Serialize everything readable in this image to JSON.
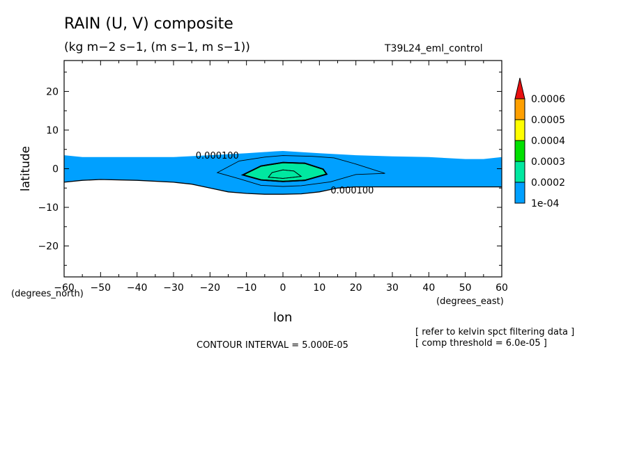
{
  "title": "RAIN (U, V) composite",
  "units": "(kg m−2 s−1, (m s−1, m s−1))",
  "run_name": "T39L24_eml_control",
  "contour_interval": "CONTOUR INTERVAL = 5.000E-05",
  "notes": [
    "[ refer to kelvin spct filtering data ]",
    "[ comp threshold = 6.0e-05 ]"
  ],
  "colors": {
    "c1": "#00a0ff",
    "c2": "#00e8a0",
    "c3": "#00e000",
    "c4": "#ffff00",
    "c5": "#ffa000",
    "c6": "#e81010"
  },
  "chart_data": {
    "type": "heatmap",
    "variable": "RAIN",
    "xlabel": "lon",
    "ylabel": "latitude",
    "x_units": "(degrees_east)",
    "y_units": "(degrees_north)",
    "xlim": [
      -60,
      60
    ],
    "ylim": [
      -28,
      28
    ],
    "x_ticks": [
      -60,
      -50,
      -40,
      -30,
      -20,
      -10,
      0,
      10,
      20,
      30,
      40,
      50,
      60
    ],
    "y_ticks": [
      -20,
      -10,
      0,
      10,
      20
    ],
    "colorbar": {
      "labels": [
        "1e-04",
        "0.0002",
        "0.0003",
        "0.0004",
        "0.0005",
        "0.0006"
      ],
      "levels": [
        0.0001,
        0.0002,
        0.0003,
        0.0004,
        0.0005,
        0.0006
      ],
      "extend": "max"
    },
    "contour_labels": [
      {
        "text": "0.000100",
        "lon": -18,
        "lat": 3.5
      },
      {
        "text": "0.000100",
        "lon": 19,
        "lat": -5.5
      }
    ],
    "regions": [
      {
        "level": 0.0001,
        "north": [
          [
            -60,
            3.5
          ],
          [
            -55,
            3
          ],
          [
            -50,
            3
          ],
          [
            -40,
            3
          ],
          [
            -30,
            3
          ],
          [
            -20,
            3.5
          ],
          [
            -10,
            4
          ],
          [
            -2,
            4.5
          ],
          [
            0,
            4.6
          ],
          [
            5,
            4.3
          ],
          [
            10,
            4
          ],
          [
            20,
            3.5
          ],
          [
            30,
            3.2
          ],
          [
            40,
            3
          ],
          [
            50,
            2.5
          ],
          [
            55,
            2.5
          ],
          [
            60,
            3
          ]
        ],
        "south": [
          [
            -60,
            -3.5
          ],
          [
            -55,
            -3
          ],
          [
            -50,
            -2.8
          ],
          [
            -40,
            -3
          ],
          [
            -30,
            -3.5
          ],
          [
            -25,
            -4
          ],
          [
            -20,
            -5
          ],
          [
            -15,
            -6
          ],
          [
            -10,
            -6.4
          ],
          [
            -5,
            -6.6
          ],
          [
            0,
            -6.6
          ],
          [
            5,
            -6.5
          ],
          [
            10,
            -6
          ],
          [
            15,
            -5
          ],
          [
            20,
            -4.7
          ],
          [
            30,
            -4.7
          ],
          [
            40,
            -4.7
          ],
          [
            50,
            -4.7
          ],
          [
            60,
            -4.7
          ]
        ]
      },
      {
        "level": 0.0002,
        "outline": [
          [
            -18,
            -1
          ],
          [
            -12,
            2
          ],
          [
            -5,
            3
          ],
          [
            0,
            3.4
          ],
          [
            8,
            3.2
          ],
          [
            14,
            2.8
          ],
          [
            20,
            1.2
          ],
          [
            28,
            -1.2
          ],
          [
            20,
            -1.5
          ],
          [
            13,
            -3.4
          ],
          [
            5,
            -4.4
          ],
          [
            0,
            -4.6
          ],
          [
            -6,
            -4.3
          ],
          [
            -12,
            -2.6
          ]
        ]
      },
      {
        "level": 0.0003,
        "outline": [
          [
            -11,
            -1.6
          ],
          [
            -6,
            0.7
          ],
          [
            0,
            1.6
          ],
          [
            6,
            1.4
          ],
          [
            11,
            -0.1
          ],
          [
            12,
            -1.4
          ],
          [
            6,
            -3
          ],
          [
            0,
            -3.3
          ],
          [
            -6,
            -2.9
          ]
        ]
      },
      {
        "level": 0.00035,
        "outline": [
          [
            -3,
            -1
          ],
          [
            0,
            -0.3
          ],
          [
            3,
            -0.6
          ],
          [
            5,
            -2
          ],
          [
            0,
            -2.5
          ],
          [
            -4,
            -2.2
          ]
        ]
      }
    ]
  }
}
